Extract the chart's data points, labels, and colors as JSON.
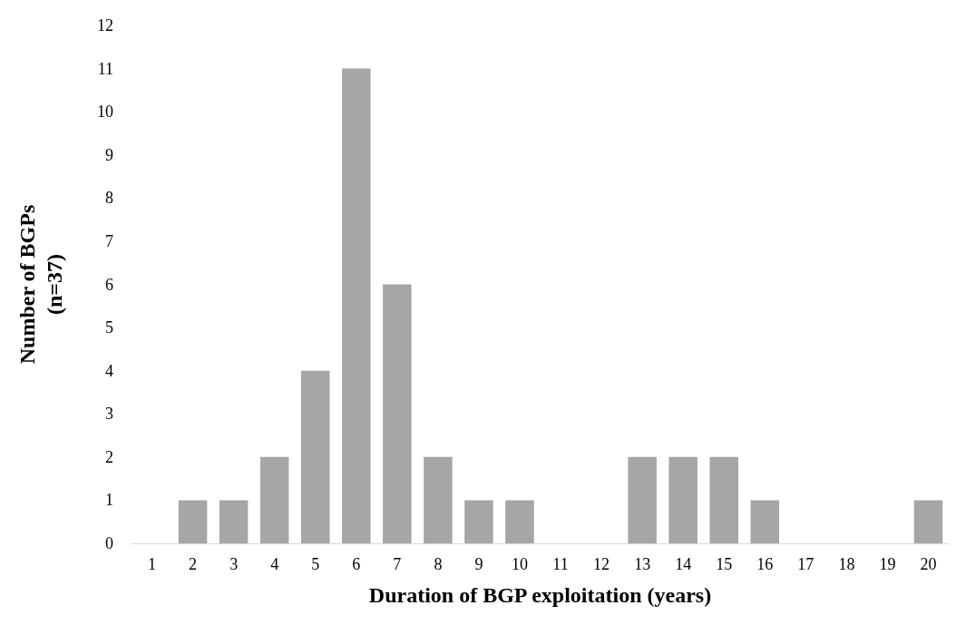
{
  "chart_data": {
    "type": "bar",
    "xlabel": "Duration of BGP exploitation (years)",
    "ylabel": "Number of BGPs\n(n=37)",
    "categories": [
      "1",
      "2",
      "3",
      "4",
      "5",
      "6",
      "7",
      "8",
      "9",
      "10",
      "11",
      "12",
      "13",
      "14",
      "15",
      "16",
      "17",
      "18",
      "19",
      "20"
    ],
    "values": [
      0,
      1,
      1,
      2,
      4,
      11,
      6,
      2,
      1,
      1,
      0,
      0,
      2,
      2,
      2,
      1,
      0,
      0,
      0,
      1
    ],
    "color": "#a6a6a6",
    "ylim": [
      0,
      12
    ],
    "yticks": [
      0,
      1,
      2,
      3,
      4,
      5,
      6,
      7,
      8,
      9,
      10,
      11,
      12
    ],
    "grid": false
  }
}
